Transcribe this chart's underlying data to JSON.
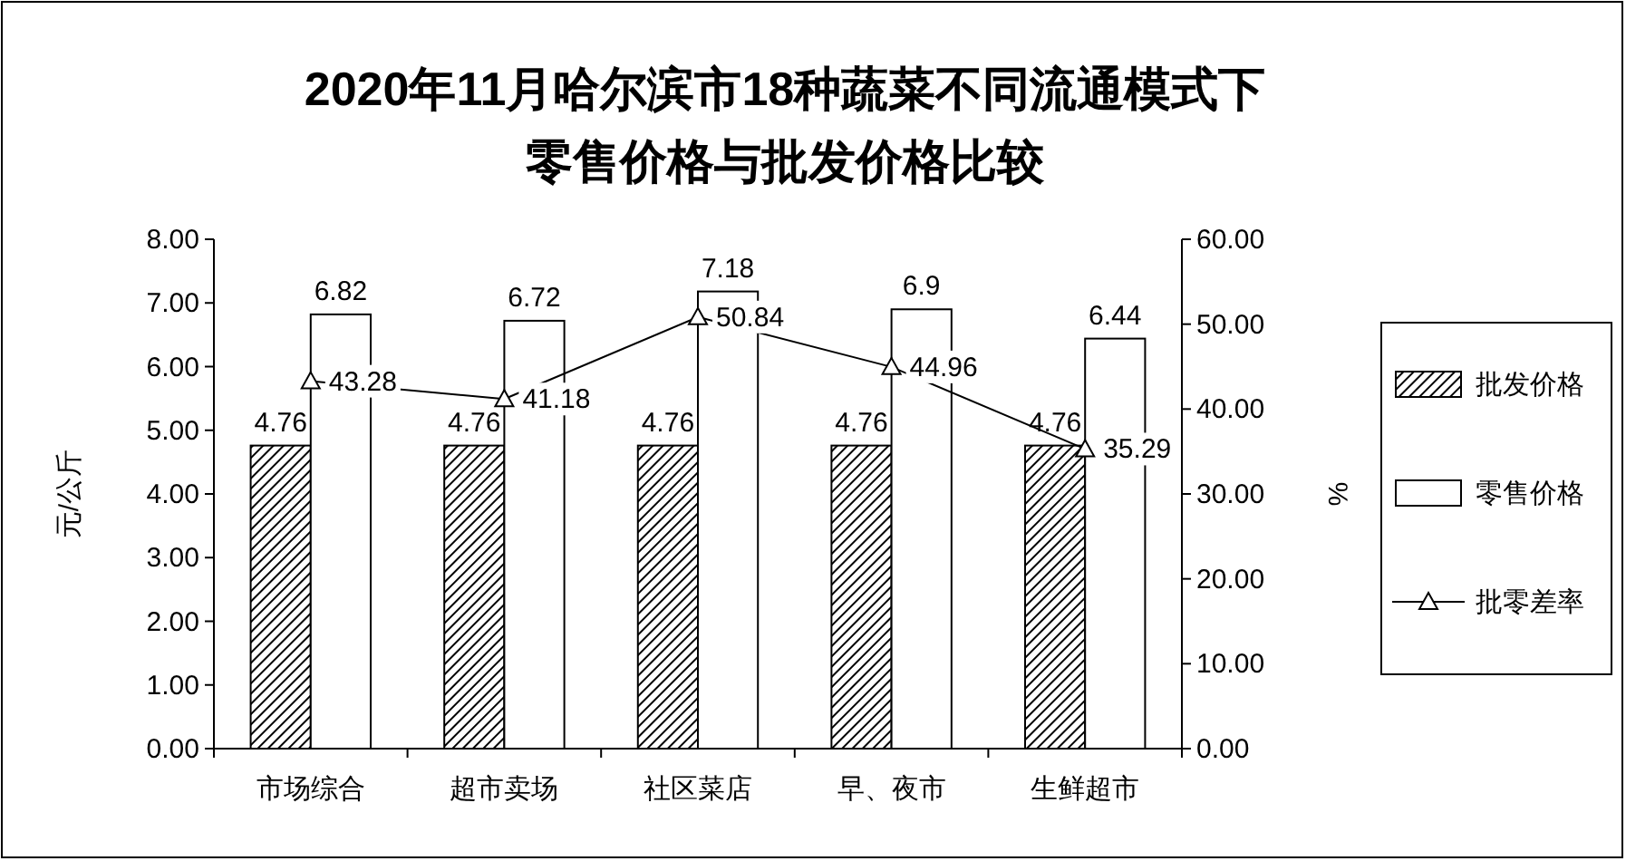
{
  "chart_data": {
    "type": "bar",
    "title": "2020年11月哈尔滨市18种蔬菜不同流通模式下零售价格与批发价格比较",
    "ylabel": "元/公斤",
    "y2label": "%",
    "categories": [
      "市场综合",
      "超市卖场",
      "社区菜店",
      "早、夜市",
      "生鲜超市"
    ],
    "series": [
      {
        "name": "批发价格",
        "color": "#000000",
        "values": [
          4.76,
          4.76,
          4.76,
          4.76,
          4.76
        ]
      },
      {
        "name": "零售价格",
        "color": "#ffffff",
        "values": [
          6.82,
          6.72,
          7.18,
          6.9,
          6.44
        ]
      },
      {
        "name": "批零差率",
        "type": "line",
        "axis": "y2",
        "color": "#000000",
        "marker": "triangle",
        "values": [
          43.28,
          41.18,
          50.84,
          44.96,
          35.29
        ]
      }
    ],
    "ylim": [
      0,
      8
    ],
    "yticks": [
      {
        "value": 0,
        "label": "0.00"
      },
      {
        "value": 1,
        "label": "1.00"
      },
      {
        "value": 2,
        "label": "2.00"
      },
      {
        "value": 3,
        "label": "3.00"
      },
      {
        "value": 4,
        "label": "4.00"
      },
      {
        "value": 5,
        "label": "5.00"
      },
      {
        "value": 6,
        "label": "6.00"
      },
      {
        "value": 7,
        "label": "7.00"
      },
      {
        "value": 8,
        "label": "8.00"
      }
    ],
    "y2lim": [
      0,
      60
    ],
    "y2ticks": [
      {
        "value": 0,
        "label": "0.00"
      },
      {
        "value": 10,
        "label": "10.00"
      },
      {
        "value": 20,
        "label": "20.00"
      },
      {
        "value": 30,
        "label": "30.00"
      },
      {
        "value": 40,
        "label": "40.00"
      },
      {
        "value": 50,
        "label": "50.00"
      },
      {
        "value": 60,
        "label": "60.00"
      }
    ],
    "data_labels": true,
    "legend": "right",
    "grid": false
  }
}
